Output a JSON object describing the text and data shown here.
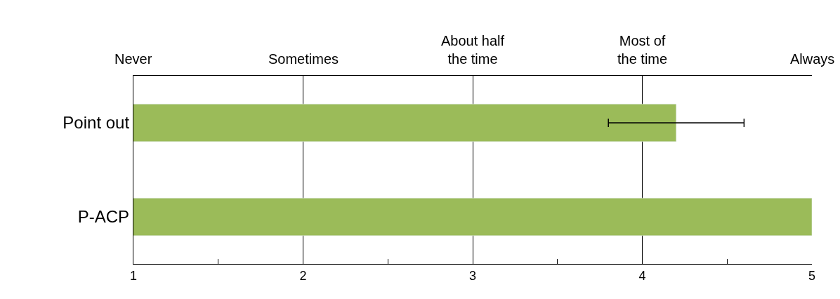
{
  "chart_data": {
    "type": "bar",
    "orientation": "horizontal",
    "categories": [
      "Point out",
      "P-ACP"
    ],
    "values": [
      4.2,
      5
    ],
    "errors": [
      [
        3.8,
        4.6
      ],
      null
    ],
    "color": "#9bbb59",
    "xlim": [
      1,
      5
    ],
    "xticks": [
      1,
      {
        "value": 1.5,
        "label": null
      },
      2,
      {
        "value": 2.5,
        "label": null
      },
      3,
      {
        "value": 3.5,
        "label": null
      },
      4,
      {
        "value": 4.5,
        "label": null
      },
      5
    ],
    "annotations": [
      "Never",
      "Sometimes",
      "About half\nthe time",
      "Most of\nthe time",
      "Always"
    ],
    "grid": "x"
  }
}
